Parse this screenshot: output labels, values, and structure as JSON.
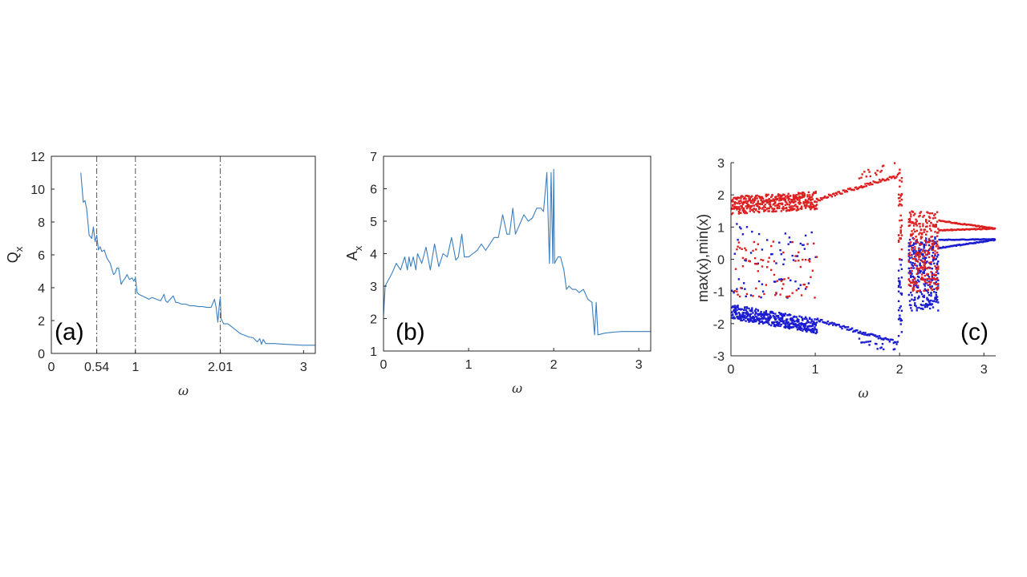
{
  "colors": {
    "line": "#3a7fbf",
    "max_dots": "#dd1f1f",
    "min_dots": "#1b1bd0",
    "vline": "#555555",
    "axis": "#262626"
  },
  "chart_data": [
    {
      "type": "line",
      "panel_label": "(a)",
      "xlabel": "ω",
      "ylabel": "Q",
      "ylabel_sub": "x",
      "xlim": [
        0,
        3.14
      ],
      "ylim": [
        0,
        12
      ],
      "xticks": [
        {
          "v": 0,
          "label": "0"
        },
        {
          "v": 0.54,
          "label": "0.54"
        },
        {
          "v": 1,
          "label": "1"
        },
        {
          "v": 2.01,
          "label": "2.01"
        },
        {
          "v": 3,
          "label": "3"
        }
      ],
      "yticks": [
        0,
        2,
        4,
        6,
        8,
        10,
        12
      ],
      "vlines": [
        0.54,
        1,
        2.01
      ],
      "series": [
        {
          "name": "Q_x",
          "x": [
            0.35,
            0.38,
            0.4,
            0.42,
            0.45,
            0.48,
            0.5,
            0.52,
            0.54,
            0.56,
            0.58,
            0.6,
            0.63,
            0.66,
            0.7,
            0.74,
            0.76,
            0.78,
            0.8,
            0.83,
            0.85,
            0.88,
            0.9,
            0.93,
            0.96,
            0.98,
            1.0,
            1.02,
            1.04,
            1.08,
            1.12,
            1.16,
            1.2,
            1.25,
            1.3,
            1.34,
            1.36,
            1.38,
            1.45,
            1.48,
            1.5,
            1.55,
            1.6,
            1.65,
            1.7,
            1.75,
            1.8,
            1.85,
            1.9,
            1.94,
            1.96,
            1.98,
            2.0,
            2.01,
            2.02,
            2.03,
            2.05,
            2.1,
            2.15,
            2.2,
            2.25,
            2.3,
            2.35,
            2.4,
            2.45,
            2.48,
            2.5,
            2.52,
            2.55,
            2.6,
            2.65,
            2.7,
            2.8,
            2.9,
            3.0,
            3.14
          ],
          "y": [
            11,
            9.2,
            9.3,
            8.8,
            7.2,
            7.0,
            7.7,
            6.8,
            7.2,
            6.3,
            6.5,
            6.2,
            6.3,
            5.8,
            5.5,
            4.8,
            4.9,
            5.2,
            5.2,
            4.2,
            4.4,
            4.6,
            4.8,
            4.5,
            4.6,
            4.4,
            4.6,
            3.7,
            3.6,
            3.5,
            3.4,
            3.3,
            3.4,
            3.3,
            3.2,
            3.6,
            3.2,
            3.1,
            3.5,
            3.1,
            3.1,
            3.0,
            3.0,
            2.9,
            2.9,
            2.85,
            2.85,
            2.8,
            2.8,
            3.3,
            2.8,
            1.9,
            3.1,
            3.4,
            2.1,
            2.0,
            1.8,
            1.8,
            1.6,
            1.4,
            1.2,
            1.1,
            1.0,
            0.95,
            0.7,
            0.9,
            0.55,
            0.85,
            0.6,
            0.6,
            0.6,
            0.58,
            0.55,
            0.52,
            0.5,
            0.5
          ]
        }
      ]
    },
    {
      "type": "line",
      "panel_label": "(b)",
      "xlabel": "ω",
      "ylabel": "A",
      "ylabel_sub": "x",
      "xlim": [
        0,
        3.14
      ],
      "ylim": [
        1,
        7
      ],
      "xticks": [
        {
          "v": 0,
          "label": "0"
        },
        {
          "v": 1,
          "label": "1"
        },
        {
          "v": 2,
          "label": "2"
        },
        {
          "v": 3,
          "label": "3"
        }
      ],
      "yticks": [
        1,
        2,
        3,
        4,
        5,
        6,
        7
      ],
      "vlines": [],
      "series": [
        {
          "name": "A_x",
          "x": [
            0,
            0.02,
            0.04,
            0.06,
            0.1,
            0.15,
            0.2,
            0.25,
            0.28,
            0.3,
            0.32,
            0.35,
            0.38,
            0.4,
            0.45,
            0.5,
            0.55,
            0.6,
            0.65,
            0.7,
            0.75,
            0.8,
            0.85,
            0.88,
            0.92,
            0.95,
            1.0,
            1.05,
            1.1,
            1.15,
            1.2,
            1.25,
            1.3,
            1.35,
            1.4,
            1.45,
            1.48,
            1.52,
            1.55,
            1.6,
            1.65,
            1.7,
            1.75,
            1.8,
            1.85,
            1.88,
            1.92,
            1.95,
            1.97,
            1.99,
            2.0,
            2.01,
            2.03,
            2.05,
            2.08,
            2.12,
            2.15,
            2.18,
            2.22,
            2.26,
            2.3,
            2.35,
            2.4,
            2.45,
            2.48,
            2.5,
            2.52,
            2.6,
            2.7,
            2.8,
            2.9,
            3.0,
            3.14
          ],
          "y": [
            2.1,
            3.0,
            3.1,
            3.2,
            3.4,
            3.7,
            3.5,
            3.9,
            3.5,
            3.9,
            3.6,
            3.9,
            3.5,
            4.0,
            3.7,
            4.2,
            3.5,
            4.3,
            3.6,
            4.0,
            3.9,
            4.5,
            3.8,
            3.9,
            4.6,
            3.9,
            3.9,
            4.0,
            4.1,
            4.3,
            4.1,
            4.3,
            4.5,
            4.5,
            5.2,
            4.6,
            4.6,
            5.4,
            4.6,
            4.9,
            5.2,
            5.0,
            5.1,
            5.4,
            5.4,
            5.3,
            6.5,
            3.7,
            6.5,
            3.7,
            6.6,
            3.7,
            3.8,
            3.9,
            3.9,
            3.5,
            2.9,
            3.0,
            2.9,
            2.9,
            2.8,
            2.9,
            2.6,
            2.5,
            1.5,
            2.5,
            1.5,
            1.55,
            1.58,
            1.6,
            1.6,
            1.6,
            1.6
          ]
        }
      ]
    },
    {
      "type": "scatter",
      "panel_label": "(c)",
      "xlabel": "ω",
      "ylabel": "max(x),min(x)",
      "xlim": [
        0,
        3.14
      ],
      "ylim": [
        -3,
        3
      ],
      "xticks": [
        {
          "v": 0,
          "label": "0"
        },
        {
          "v": 1,
          "label": "1"
        },
        {
          "v": 2,
          "label": "2"
        },
        {
          "v": 3,
          "label": "3"
        }
      ],
      "yticks": [
        -3,
        -2,
        -1,
        0,
        1,
        2,
        3
      ],
      "series": [
        {
          "name": "max(x)",
          "color": "#dd1f1f"
        },
        {
          "name": "min(x)",
          "color": "#1b1bd0"
        }
      ]
    }
  ]
}
